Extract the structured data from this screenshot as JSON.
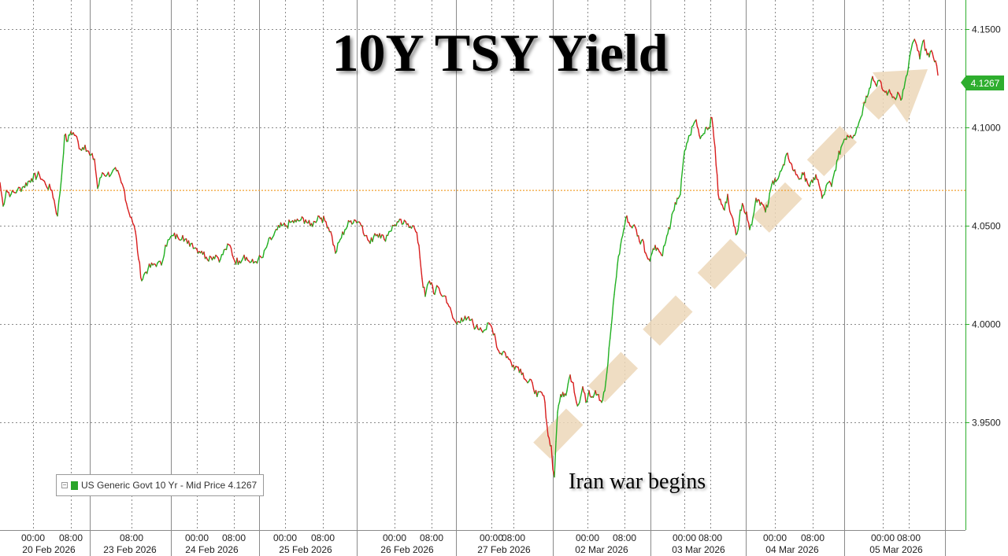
{
  "chart_data": {
    "type": "line",
    "title": "10Y TSY Yield",
    "series": [
      {
        "name": "US Generic Govt 10 Yr - Mid Price",
        "points": [
          [
            0,
            4.072
          ],
          [
            4,
            4.06
          ],
          [
            8,
            4.068
          ],
          [
            14,
            4.066
          ],
          [
            22,
            4.068
          ],
          [
            30,
            4.07
          ],
          [
            40,
            4.074
          ],
          [
            50,
            4.076
          ],
          [
            58,
            4.071
          ],
          [
            66,
            4.068
          ],
          [
            73,
            4.055
          ],
          [
            78,
            4.074
          ],
          [
            82,
            4.096
          ],
          [
            86,
            4.093
          ],
          [
            90,
            4.098
          ],
          [
            96,
            4.096
          ],
          [
            102,
            4.089
          ],
          [
            108,
            4.091
          ],
          [
            114,
            4.086
          ],
          [
            120,
            4.084
          ],
          [
            124,
            4.069
          ],
          [
            130,
            4.077
          ],
          [
            136,
            4.076
          ],
          [
            142,
            4.077
          ],
          [
            148,
            4.078
          ],
          [
            154,
            4.072
          ],
          [
            158,
            4.068
          ],
          [
            162,
            4.059
          ],
          [
            167,
            4.054
          ],
          [
            172,
            4.047
          ],
          [
            176,
            4.033
          ],
          [
            180,
            4.022
          ],
          [
            184,
            4.026
          ],
          [
            188,
            4.028
          ],
          [
            194,
            4.03
          ],
          [
            200,
            4.031
          ],
          [
            205,
            4.03
          ],
          [
            210,
            4.04
          ],
          [
            215,
            4.043
          ],
          [
            220,
            4.045
          ],
          [
            226,
            4.044
          ],
          [
            232,
            4.045
          ],
          [
            238,
            4.041
          ],
          [
            244,
            4.041
          ],
          [
            250,
            4.038
          ],
          [
            256,
            4.037
          ],
          [
            262,
            4.034
          ],
          [
            268,
            4.034
          ],
          [
            274,
            4.035
          ],
          [
            280,
            4.033
          ],
          [
            286,
            4.038
          ],
          [
            292,
            4.04
          ],
          [
            298,
            4.032
          ],
          [
            304,
            4.032
          ],
          [
            310,
            4.035
          ],
          [
            316,
            4.032
          ],
          [
            322,
            4.031
          ],
          [
            328,
            4.033
          ],
          [
            334,
            4.034
          ],
          [
            340,
            4.041
          ],
          [
            346,
            4.044
          ],
          [
            352,
            4.048
          ],
          [
            358,
            4.05
          ],
          [
            364,
            4.05
          ],
          [
            370,
            4.052
          ],
          [
            376,
            4.052
          ],
          [
            382,
            4.053
          ],
          [
            388,
            4.053
          ],
          [
            394,
            4.05
          ],
          [
            400,
            4.052
          ],
          [
            404,
            4.055
          ],
          [
            408,
            4.054
          ],
          [
            414,
            4.052
          ],
          [
            420,
            4.047
          ],
          [
            426,
            4.036
          ],
          [
            432,
            4.043
          ],
          [
            438,
            4.048
          ],
          [
            444,
            4.052
          ],
          [
            450,
            4.053
          ],
          [
            456,
            4.052
          ],
          [
            460,
            4.05
          ],
          [
            464,
            4.045
          ],
          [
            470,
            4.041
          ],
          [
            476,
            4.046
          ],
          [
            482,
            4.046
          ],
          [
            488,
            4.043
          ],
          [
            494,
            4.047
          ],
          [
            500,
            4.05
          ],
          [
            506,
            4.052
          ],
          [
            512,
            4.051
          ],
          [
            518,
            4.051
          ],
          [
            524,
            4.05
          ],
          [
            528,
            4.047
          ],
          [
            532,
            4.04
          ],
          [
            536,
            4.023
          ],
          [
            540,
            4.014
          ],
          [
            544,
            4.021
          ],
          [
            548,
            4.021
          ],
          [
            552,
            4.015
          ],
          [
            556,
            4.019
          ],
          [
            562,
            4.014
          ],
          [
            566,
            4.014
          ],
          [
            570,
            4.009
          ],
          [
            575,
            4.003
          ],
          [
            580,
            4.0
          ],
          [
            586,
            4.003
          ],
          [
            592,
            4.002
          ],
          [
            598,
            4.002
          ],
          [
            604,
            3.998
          ],
          [
            610,
            3.998
          ],
          [
            616,
            3.997
          ],
          [
            622,
            4.0
          ],
          [
            628,
            3.995
          ],
          [
            632,
            3.987
          ],
          [
            636,
            3.985
          ],
          [
            640,
            3.986
          ],
          [
            646,
            3.982
          ],
          [
            652,
            3.979
          ],
          [
            658,
            3.978
          ],
          [
            664,
            3.975
          ],
          [
            670,
            3.97
          ],
          [
            676,
            3.97
          ],
          [
            682,
            3.963
          ],
          [
            688,
            3.965
          ],
          [
            692,
            3.96
          ],
          [
            696,
            3.943
          ],
          [
            700,
            3.938
          ],
          [
            702,
            3.926
          ],
          [
            704,
            3.922
          ],
          [
            706,
            3.94
          ],
          [
            708,
            3.955
          ],
          [
            712,
            3.964
          ],
          [
            716,
            3.963
          ],
          [
            720,
            3.966
          ],
          [
            724,
            3.974
          ],
          [
            728,
            3.97
          ],
          [
            732,
            3.96
          ],
          [
            736,
            3.96
          ],
          [
            740,
            3.968
          ],
          [
            744,
            3.96
          ],
          [
            748,
            3.966
          ],
          [
            752,
            3.963
          ],
          [
            756,
            3.966
          ],
          [
            760,
            3.964
          ],
          [
            764,
            3.96
          ],
          [
            768,
            3.966
          ],
          [
            772,
            3.98
          ],
          [
            776,
            3.998
          ],
          [
            780,
            4.015
          ],
          [
            784,
            4.03
          ],
          [
            788,
            4.04
          ],
          [
            792,
            4.048
          ],
          [
            796,
            4.055
          ],
          [
            800,
            4.05
          ],
          [
            804,
            4.05
          ],
          [
            808,
            4.048
          ],
          [
            812,
            4.042
          ],
          [
            816,
            4.043
          ],
          [
            820,
            4.036
          ],
          [
            824,
            4.033
          ],
          [
            828,
            4.036
          ],
          [
            832,
            4.04
          ],
          [
            836,
            4.038
          ],
          [
            840,
            4.035
          ],
          [
            844,
            4.04
          ],
          [
            848,
            4.046
          ],
          [
            852,
            4.052
          ],
          [
            856,
            4.058
          ],
          [
            860,
            4.064
          ],
          [
            864,
            4.066
          ],
          [
            868,
            4.084
          ],
          [
            872,
            4.092
          ],
          [
            876,
            4.096
          ],
          [
            880,
            4.101
          ],
          [
            884,
            4.104
          ],
          [
            888,
            4.096
          ],
          [
            892,
            4.096
          ],
          [
            896,
            4.1
          ],
          [
            900,
            4.1
          ],
          [
            904,
            4.105
          ],
          [
            908,
            4.09
          ],
          [
            912,
            4.066
          ],
          [
            916,
            4.061
          ],
          [
            920,
            4.058
          ],
          [
            924,
            4.066
          ],
          [
            928,
            4.056
          ],
          [
            932,
            4.05
          ],
          [
            936,
            4.046
          ],
          [
            940,
            4.058
          ],
          [
            944,
            4.06
          ],
          [
            948,
            4.057
          ],
          [
            952,
            4.048
          ],
          [
            956,
            4.054
          ],
          [
            960,
            4.064
          ],
          [
            964,
            4.063
          ],
          [
            968,
            4.061
          ],
          [
            972,
            4.057
          ],
          [
            976,
            4.062
          ],
          [
            980,
            4.071
          ],
          [
            984,
            4.074
          ],
          [
            988,
            4.074
          ],
          [
            992,
            4.078
          ],
          [
            996,
            4.081
          ],
          [
            1000,
            4.087
          ],
          [
            1004,
            4.082
          ],
          [
            1008,
            4.078
          ],
          [
            1012,
            4.076
          ],
          [
            1016,
            4.074
          ],
          [
            1020,
            4.076
          ],
          [
            1024,
            4.074
          ],
          [
            1028,
            4.07
          ],
          [
            1032,
            4.072
          ],
          [
            1036,
            4.076
          ],
          [
            1040,
            4.071
          ],
          [
            1044,
            4.064
          ],
          [
            1048,
            4.068
          ],
          [
            1052,
            4.072
          ],
          [
            1056,
            4.07
          ],
          [
            1060,
            4.078
          ],
          [
            1064,
            4.084
          ],
          [
            1068,
            4.09
          ],
          [
            1072,
            4.094
          ],
          [
            1076,
            4.096
          ],
          [
            1080,
            4.096
          ],
          [
            1084,
            4.096
          ],
          [
            1088,
            4.1
          ],
          [
            1092,
            4.104
          ],
          [
            1096,
            4.11
          ],
          [
            1100,
            4.116
          ],
          [
            1104,
            4.12
          ],
          [
            1108,
            4.126
          ],
          [
            1112,
            4.122
          ],
          [
            1116,
            4.124
          ],
          [
            1120,
            4.12
          ],
          [
            1124,
            4.118
          ],
          [
            1128,
            4.118
          ],
          [
            1132,
            4.117
          ],
          [
            1136,
            4.115
          ],
          [
            1140,
            4.118
          ],
          [
            1144,
            4.114
          ],
          [
            1148,
            4.12
          ],
          [
            1152,
            4.127
          ],
          [
            1156,
            4.138
          ],
          [
            1160,
            4.144
          ],
          [
            1164,
            4.142
          ],
          [
            1168,
            4.135
          ],
          [
            1172,
            4.144
          ],
          [
            1176,
            4.14
          ],
          [
            1180,
            4.136
          ],
          [
            1184,
            4.138
          ],
          [
            1188,
            4.134
          ],
          [
            1191,
            4.1267
          ]
        ]
      }
    ],
    "yticks": [
      "3.9500",
      "4.0000",
      "4.0500",
      "4.1000",
      "4.1500"
    ],
    "ylim": [
      3.895,
      4.165
    ],
    "xlim": [
      0,
      1226
    ],
    "reference_line": 4.068,
    "last_value": "4.1267",
    "x_time_labels": [
      {
        "x": 42,
        "label": "00:00"
      },
      {
        "x": 90,
        "label": "08:00"
      },
      {
        "x": 167,
        "label": "08:00"
      },
      {
        "x": 250,
        "label": "00:00"
      },
      {
        "x": 297,
        "label": "08:00"
      },
      {
        "x": 362,
        "label": "00:00"
      },
      {
        "x": 410,
        "label": "08:00"
      },
      {
        "x": 501,
        "label": "00:00"
      },
      {
        "x": 548,
        "label": "08:00"
      },
      {
        "x": 624,
        "label": "00:00"
      },
      {
        "x": 652,
        "label": "08:00"
      },
      {
        "x": 746,
        "label": "00:00"
      },
      {
        "x": 793,
        "label": "08:00"
      },
      {
        "x": 869,
        "label": "00:00"
      },
      {
        "x": 902,
        "label": "08:00"
      },
      {
        "x": 984,
        "label": "00:00"
      },
      {
        "x": 1032,
        "label": "08:00"
      },
      {
        "x": 1121,
        "label": "00:00"
      },
      {
        "x": 1154,
        "label": "08:00"
      }
    ],
    "x_date_labels": [
      {
        "x": 62,
        "label": "20 Feb 2026"
      },
      {
        "x": 165,
        "label": "23 Feb 2026"
      },
      {
        "x": 269,
        "label": "24 Feb 2026"
      },
      {
        "x": 388,
        "label": "25 Feb 2026"
      },
      {
        "x": 517,
        "label": "26 Feb 2026"
      },
      {
        "x": 640,
        "label": "27 Feb 2026"
      },
      {
        "x": 764,
        "label": "02 Mar 2026"
      },
      {
        "x": 887,
        "label": "03 Mar 2026"
      },
      {
        "x": 1006,
        "label": "04 Mar 2026"
      },
      {
        "x": 1138,
        "label": "05 Mar 2026"
      }
    ],
    "annotations": [
      "Iran war begins"
    ]
  },
  "title": "10Y TSY Yield",
  "annotation": "Iran war begins",
  "legend_label": "US Generic Govt 10 Yr - Mid Price 4.1267",
  "price_tag": "4.1267",
  "colors": {
    "up": "#22b022",
    "down": "#d81e1e",
    "grid": "#8a8a8a",
    "axis": "#2eae2e",
    "reference": "#f0a030",
    "arrow": "#ecd7b8"
  }
}
